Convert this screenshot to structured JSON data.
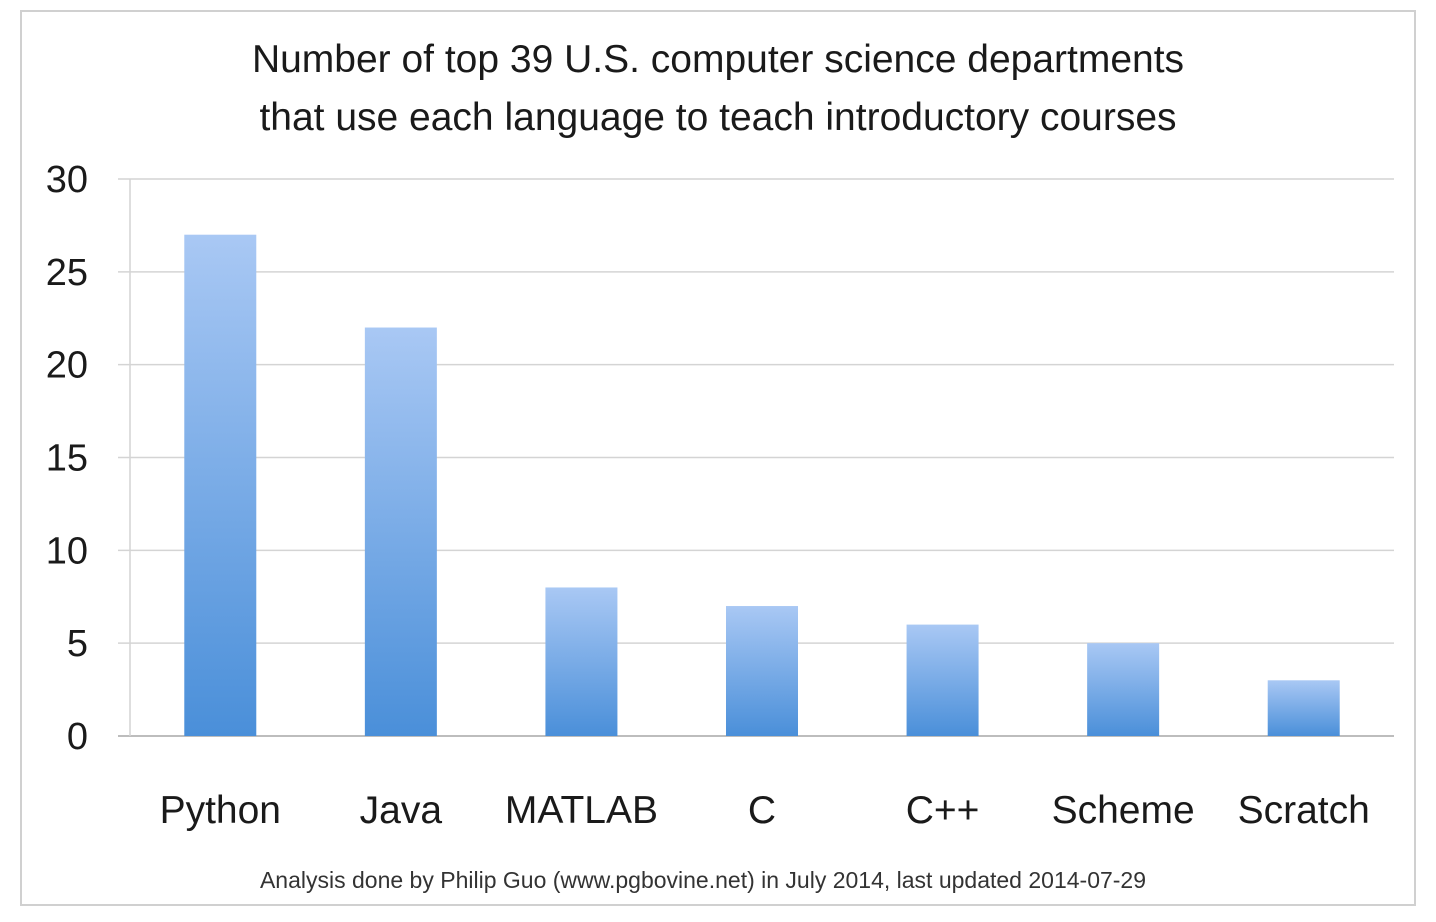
{
  "chart_data": {
    "type": "bar",
    "title_lines": [
      "Number of top 39 U.S. computer science departments",
      "that use each language to teach introductory courses"
    ],
    "categories": [
      "Python",
      "Java",
      "MATLAB",
      "C",
      "C++",
      "Scheme",
      "Scratch"
    ],
    "values": [
      27,
      22,
      8,
      7,
      6,
      5,
      3
    ],
    "ylim": [
      0,
      30
    ],
    "yticks": [
      0,
      5,
      10,
      15,
      20,
      25,
      30
    ],
    "grid": true,
    "xlabel": "",
    "ylabel": "",
    "footnote": "Analysis done by Philip Guo (www.pgbovine.net) in July 2014, last updated 2014-07-29",
    "colors": {
      "bar_top": "#a9c8f4",
      "bar_bottom": "#4a8fd9",
      "grid": "#d4d4d4",
      "axis": "#bdbdbd"
    }
  }
}
